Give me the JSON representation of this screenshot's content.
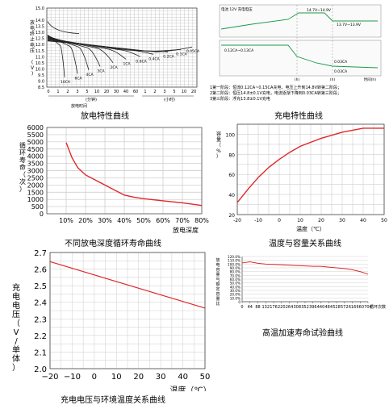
{
  "captions": {
    "discharge": "放电特性曲线",
    "charge": "充电特性曲线",
    "cycle_life": "不同放电深度循环寿命曲线",
    "temp_capacity": "温度与容量关系曲线",
    "charge_voltage": "充电电压与环境温度关系曲线",
    "accelerated_life": "高温加速寿命试验曲线"
  },
  "chart_data": [
    {
      "id": "discharge",
      "type": "line",
      "title": "",
      "ylabel": "放电终止电压 (V)",
      "xlabel": "放电时间",
      "ylim": [
        8.5,
        15.0
      ],
      "yticks": [
        "15.0",
        "14.0",
        "13.5",
        "13.0",
        "12.5",
        "12.0",
        "11.5",
        "11.0",
        "10.5",
        "10.0",
        "9.5",
        "9.0",
        "8.5"
      ],
      "xticks": [
        "0",
        "1",
        "2",
        "3",
        "5",
        "10",
        "20",
        "30",
        "40",
        "60",
        "1",
        "2",
        "3",
        "5",
        "10",
        "20"
      ],
      "x_units": [
        "(分钟)",
        "(小时)"
      ],
      "curve_labels": [
        "10CA",
        "6CA",
        "4CA",
        "3CA",
        "2CA",
        "1CA",
        "0.6CA",
        "0.4CA",
        "0.2CA",
        "0.1CA",
        "0.05CA"
      ]
    },
    {
      "id": "charge",
      "type": "line",
      "title": "",
      "ylabel": "电池 12V 充电电压",
      "annotations": [
        "14.7V~14.9V",
        "13.7V~13.9V",
        "0.12CA~0.13CA",
        "0.03CA",
        "0.03CA",
        "(h)",
        "(h)",
        "时间(h)"
      ],
      "notes": [
        "1第一阶段：恒流0.12CA~0.15CA充电，电压上升到14.8V转第二阶段；",
        "2第二阶段：恒压14.8±0.1V充电，电流逐渐下降到0.03CA转第三阶段；",
        "3第三阶段：浮充13.8±0.1V充电"
      ]
    },
    {
      "id": "cycle_life",
      "type": "line",
      "title": "",
      "ylabel": "循环寿命（次）",
      "xlabel": "放电深度",
      "categories": [
        "10%",
        "20%",
        "30%",
        "40%",
        "50%",
        "60%",
        "70%",
        "80%"
      ],
      "xlim": [
        0,
        80
      ],
      "ylim": [
        0,
        6000
      ],
      "yticks": [
        0,
        500,
        1000,
        1500,
        2000,
        2500,
        3000,
        3500,
        4000,
        4500,
        5000,
        5500,
        6000
      ],
      "x": [
        10,
        13,
        16,
        20,
        25,
        30,
        35,
        40,
        45,
        50,
        60,
        70,
        80
      ],
      "y": [
        4950,
        3900,
        3200,
        2700,
        2350,
        2000,
        1650,
        1300,
        1150,
        1050,
        900,
        760,
        580
      ]
    },
    {
      "id": "temp_capacity",
      "type": "line",
      "title": "",
      "ylabel": "容量（%）",
      "xlabel": "温度（℃）",
      "xlim": [
        -20,
        50
      ],
      "ylim": [
        20,
        110
      ],
      "xticks": [
        -20,
        -10,
        0,
        10,
        20,
        30,
        40,
        50
      ],
      "yticks": [
        20,
        40,
        60,
        80,
        100
      ],
      "x": [
        -20,
        -15,
        -10,
        -5,
        0,
        5,
        10,
        15,
        20,
        25,
        30,
        35,
        40,
        45,
        50
      ],
      "y": [
        32,
        45,
        57,
        67,
        75,
        82,
        88,
        92,
        96,
        99,
        102,
        104,
        106,
        106,
        106
      ]
    },
    {
      "id": "charge_voltage",
      "type": "line",
      "title": "",
      "ylabel": "充电电压（V/单体）",
      "xlabel": "温度（℃）",
      "xlim": [
        -20,
        50
      ],
      "ylim": [
        2.0,
        2.7
      ],
      "xticks": [
        -20,
        -10,
        0,
        10,
        20,
        30,
        40,
        50
      ],
      "yticks": [
        2.0,
        2.1,
        2.2,
        2.3,
        2.4,
        2.5,
        2.6,
        2.7
      ],
      "x": [
        -20,
        50
      ],
      "y": [
        2.645,
        2.365
      ]
    },
    {
      "id": "accelerated_life",
      "type": "line",
      "title": "",
      "ylabel": "放电容量与额定容量比",
      "xlabel": "循环次数",
      "ylim": [
        0,
        120
      ],
      "yticks": [
        "0",
        "10.0%",
        "20.0%",
        "30.0%",
        "40.0%",
        "50.0%",
        "60.0%",
        "70.0%",
        "80.0%",
        "90.0%",
        "100.0%",
        "110.0%",
        "120.0%"
      ],
      "categories": [
        "0",
        "44",
        "88",
        "132",
        "176",
        "220",
        "264",
        "308",
        "352",
        "396",
        "440",
        "484",
        "528",
        "572",
        "616",
        "660",
        "704"
      ],
      "values": [
        103,
        106,
        102,
        100,
        99,
        98,
        97,
        96,
        95,
        94,
        94,
        92,
        90,
        88,
        85,
        80,
        73
      ]
    }
  ]
}
